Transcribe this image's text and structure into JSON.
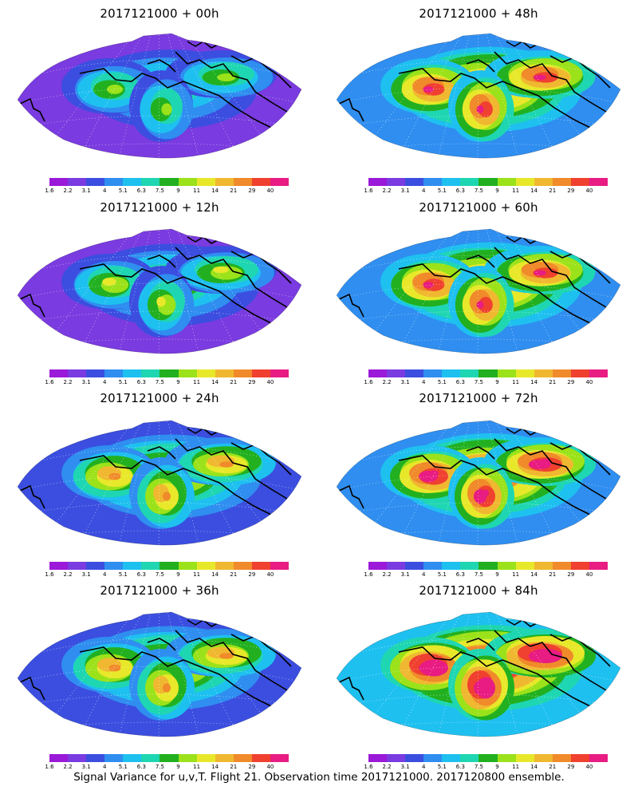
{
  "panels": [
    {
      "title": "2017121000 + 00h",
      "lead_hours": 0,
      "intensity": 0.25
    },
    {
      "title": "2017121000 + 48h",
      "lead_hours": 48,
      "intensity": 0.62
    },
    {
      "title": "2017121000 + 12h",
      "lead_hours": 12,
      "intensity": 0.35
    },
    {
      "title": "2017121000 + 60h",
      "lead_hours": 60,
      "intensity": 0.68
    },
    {
      "title": "2017121000 + 24h",
      "lead_hours": 24,
      "intensity": 0.45
    },
    {
      "title": "2017121000 + 72h",
      "lead_hours": 72,
      "intensity": 0.74
    },
    {
      "title": "2017121000 + 36h",
      "lead_hours": 36,
      "intensity": 0.54
    },
    {
      "title": "2017121000 + 84h",
      "lead_hours": 84,
      "intensity": 0.8
    }
  ],
  "colorbar": {
    "tick_labels": [
      "1.6",
      "2.2",
      "3.1",
      "4",
      "5.1",
      "6.3",
      "7.5",
      "9",
      "11",
      "14",
      "21",
      "29",
      "40"
    ],
    "colors": [
      "#9b19d8",
      "#7a3be0",
      "#3b4ee0",
      "#2f8ef0",
      "#1ec0f0",
      "#1fd6b2",
      "#22b020",
      "#9be21a",
      "#e8e82a",
      "#f0b830",
      "#f08a2a",
      "#f04030",
      "#e81c82"
    ]
  },
  "footer": "Signal Variance for u,v,T. Flight 21. Observation time 2017121000. 2017120800 ensemble."
}
